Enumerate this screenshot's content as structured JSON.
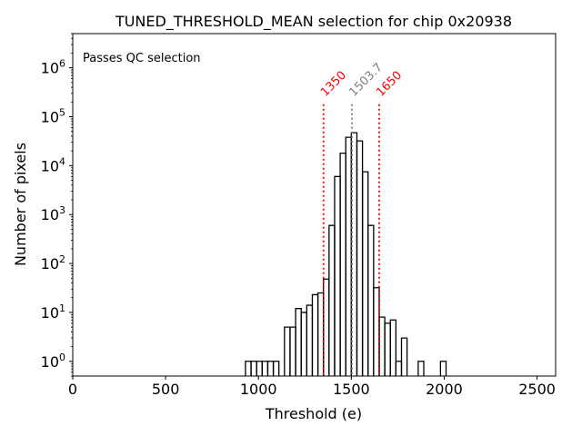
{
  "chart_data": {
    "type": "histogram",
    "title": "TUNED_THRESHOLD_MEAN selection for chip 0x20938",
    "xlabel": "Threshold (e)",
    "ylabel": "Number of pixels",
    "xlim": [
      0,
      2600
    ],
    "ylim": [
      0.5,
      5000000
    ],
    "yscale": "log",
    "x_ticks": [
      0,
      500,
      1000,
      1500,
      2000,
      2500
    ],
    "y_ticks": [
      {
        "value": 1,
        "base": "10",
        "exp": "0"
      },
      {
        "value": 10,
        "base": "10",
        "exp": "1"
      },
      {
        "value": 100,
        "base": "10",
        "exp": "2"
      },
      {
        "value": 1000,
        "base": "10",
        "exp": "3"
      },
      {
        "value": 10000,
        "base": "10",
        "exp": "4"
      },
      {
        "value": 100000,
        "base": "10",
        "exp": "5"
      },
      {
        "value": 1000000,
        "base": "10",
        "exp": "6"
      }
    ],
    "bin_width": 30,
    "bins": [
      {
        "x": 930,
        "count": 1
      },
      {
        "x": 960,
        "count": 1
      },
      {
        "x": 990,
        "count": 1
      },
      {
        "x": 1020,
        "count": 1
      },
      {
        "x": 1050,
        "count": 1
      },
      {
        "x": 1080,
        "count": 1
      },
      {
        "x": 1110,
        "count": 0
      },
      {
        "x": 1140,
        "count": 5
      },
      {
        "x": 1170,
        "count": 5
      },
      {
        "x": 1200,
        "count": 12
      },
      {
        "x": 1230,
        "count": 10
      },
      {
        "x": 1260,
        "count": 14
      },
      {
        "x": 1290,
        "count": 23
      },
      {
        "x": 1320,
        "count": 25
      },
      {
        "x": 1350,
        "count": 48
      },
      {
        "x": 1380,
        "count": 600
      },
      {
        "x": 1410,
        "count": 6000
      },
      {
        "x": 1440,
        "count": 18000
      },
      {
        "x": 1470,
        "count": 38000
      },
      {
        "x": 1500,
        "count": 47000
      },
      {
        "x": 1530,
        "count": 32000
      },
      {
        "x": 1560,
        "count": 7500
      },
      {
        "x": 1590,
        "count": 600
      },
      {
        "x": 1620,
        "count": 32
      },
      {
        "x": 1650,
        "count": 8
      },
      {
        "x": 1680,
        "count": 6
      },
      {
        "x": 1710,
        "count": 7
      },
      {
        "x": 1740,
        "count": 1
      },
      {
        "x": 1770,
        "count": 3
      },
      {
        "x": 1800,
        "count": 0
      },
      {
        "x": 1830,
        "count": 0
      },
      {
        "x": 1860,
        "count": 1
      },
      {
        "x": 1890,
        "count": 0
      },
      {
        "x": 1920,
        "count": 0
      },
      {
        "x": 1950,
        "count": 0
      },
      {
        "x": 1980,
        "count": 1
      },
      {
        "x": 2010,
        "count": 0
      }
    ],
    "vlines": [
      {
        "x": 1350,
        "label": "1350",
        "color": "#ff0000"
      },
      {
        "x": 1503.7,
        "label": "1503.7",
        "color": "#808080"
      },
      {
        "x": 1650,
        "label": "1650",
        "color": "#ff0000"
      }
    ],
    "annotation": {
      "text": "Passes QC selection",
      "color": "#008000"
    },
    "line_color": "#000000",
    "grid": false
  }
}
